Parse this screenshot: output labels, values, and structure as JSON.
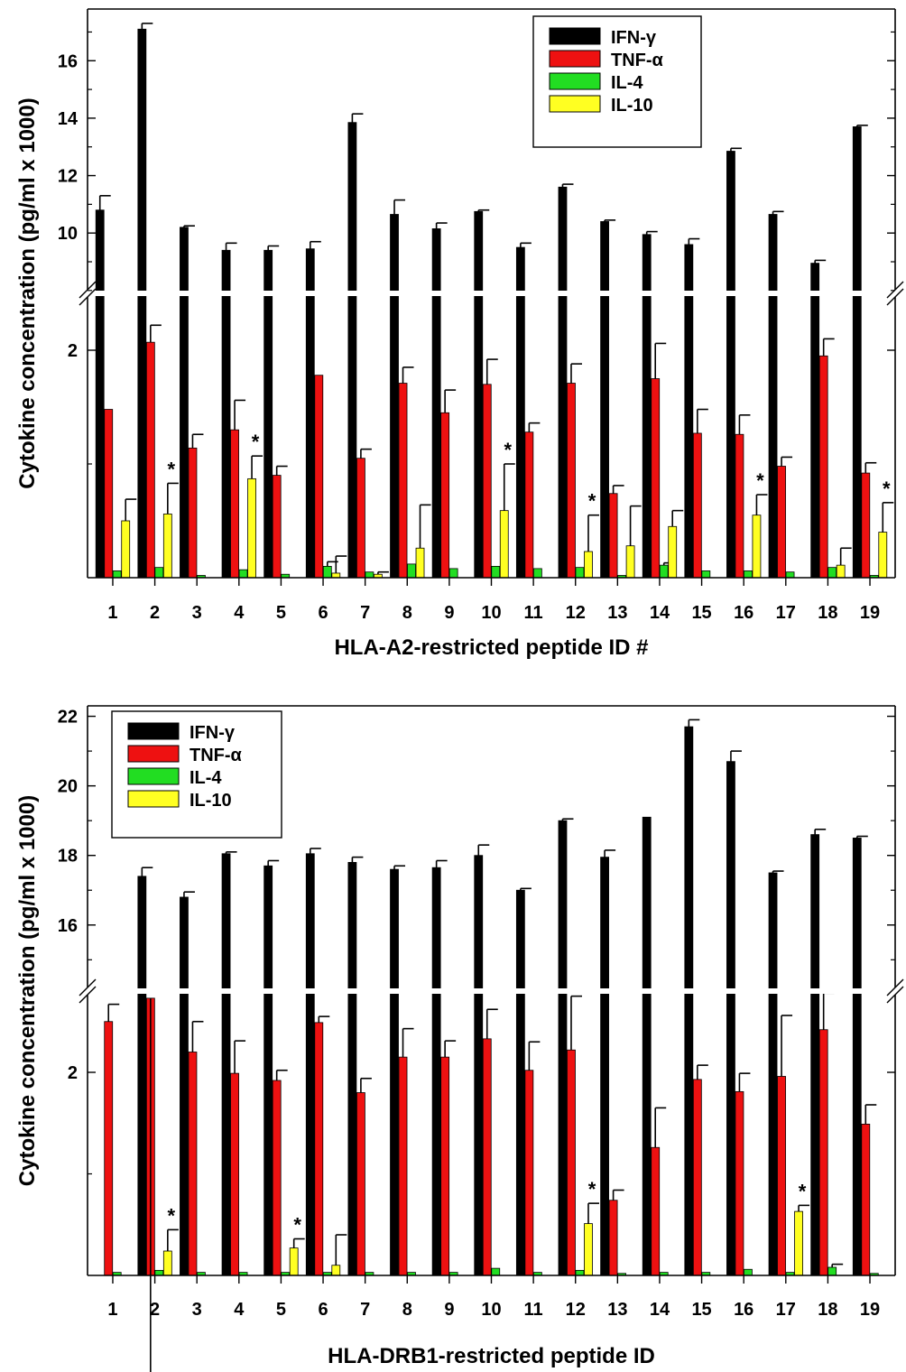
{
  "chart_data": [
    {
      "type": "bar",
      "xlabel": "HLA-A2-restricted peptide ID #",
      "ylabel": "Cytokine concentration (pg/ml x 1000)",
      "categories": [
        "1",
        "2",
        "3",
        "4",
        "5",
        "6",
        "7",
        "8",
        "9",
        "10",
        "11",
        "12",
        "13",
        "14",
        "15",
        "16",
        "17",
        "18",
        "19"
      ],
      "axis": {
        "upper": {
          "ylim": [
            7.9,
            17.8
          ],
          "ticks": [
            "10",
            "12",
            "14",
            "16"
          ]
        },
        "lower": {
          "ylim": [
            0,
            2.5
          ],
          "ticks": [
            "2"
          ]
        }
      },
      "series": [
        {
          "name": "IFN-γ",
          "color": "#000000",
          "values": [
            10.8,
            17.1,
            10.2,
            9.4,
            9.4,
            9.45,
            13.85,
            10.65,
            10.15,
            10.75,
            9.5,
            11.6,
            10.4,
            9.95,
            9.6,
            12.85,
            10.65,
            8.95,
            13.7
          ],
          "errors": [
            0.5,
            0.2,
            0.05,
            0.25,
            0.15,
            0.25,
            0.3,
            0.5,
            0.2,
            0.05,
            0.15,
            0.1,
            0.05,
            0.1,
            0.2,
            0.1,
            0.1,
            0.1,
            0.05
          ]
        },
        {
          "name": "TNF-α",
          "color": "#ee1111",
          "values": [
            1.48,
            2.07,
            1.14,
            1.3,
            0.9,
            1.78,
            1.05,
            1.71,
            1.45,
            1.7,
            1.28,
            1.71,
            0.74,
            1.75,
            1.27,
            1.26,
            0.98,
            1.95,
            0.92
          ],
          "errors": [
            0,
            0.15,
            0.12,
            0.26,
            0.08,
            0,
            0.08,
            0.14,
            0.2,
            0.22,
            0.08,
            0.17,
            0.07,
            0.31,
            0.21,
            0.17,
            0.08,
            0.15,
            0.09
          ]
        },
        {
          "name": "IL-4",
          "color": "#22dd22",
          "values": [
            0.06,
            0.09,
            0.02,
            0.07,
            0.03,
            0.1,
            0.05,
            0.12,
            0.08,
            0.1,
            0.08,
            0.09,
            0.02,
            0.11,
            0.06,
            0.06,
            0.05,
            0.09,
            0.02
          ],
          "errors": [
            0,
            0,
            0,
            0,
            0,
            0.04,
            0,
            0,
            0,
            0,
            0,
            0,
            0,
            0.02,
            0,
            0,
            0,
            0,
            0
          ]
        },
        {
          "name": "IL-10",
          "color": "#ffff22",
          "values": [
            0.5,
            0.56,
            0,
            0.87,
            0,
            0.04,
            0.03,
            0.26,
            0,
            0.59,
            0,
            0.23,
            0.28,
            0.45,
            0,
            0.55,
            0,
            0.11,
            0.4
          ],
          "errors": [
            0.19,
            0.27,
            0,
            0.2,
            0,
            0.15,
            0.02,
            0.38,
            0,
            0.41,
            0,
            0.32,
            0.35,
            0.14,
            0,
            0.18,
            0,
            0.15,
            0.26
          ]
        }
      ],
      "asterisk_categories": [
        "2",
        "4",
        "10",
        "12",
        "16",
        "19"
      ],
      "asterisk_label": "*",
      "legend_position": "top-right"
    },
    {
      "type": "bar",
      "xlabel": "HLA-DRB1-restricted peptide ID",
      "ylabel": "Cytokine concentration (pg/ml x 1000)",
      "categories": [
        "1",
        "2",
        "3",
        "4",
        "5",
        "6",
        "7",
        "8",
        "9",
        "10",
        "11",
        "12",
        "13",
        "14",
        "15",
        "16",
        "17",
        "18",
        "19"
      ],
      "axis": {
        "upper": {
          "ylim": [
            14.1,
            22.3
          ],
          "ticks": [
            "16",
            "18",
            "20",
            "22"
          ]
        },
        "lower": {
          "ylim": [
            0,
            2.8
          ],
          "ticks": [
            "2"
          ]
        }
      },
      "series": [
        {
          "name": "IFN-γ",
          "color": "#000000",
          "values": [
            0,
            17.4,
            16.8,
            18.05,
            17.7,
            18.05,
            17.8,
            17.6,
            17.65,
            18.0,
            17.0,
            19.0,
            17.95,
            19.1,
            21.7,
            20.7,
            17.5,
            18.6,
            18.5
          ],
          "errors": [
            0,
            0.25,
            0.15,
            0.05,
            0.15,
            0.15,
            0.15,
            0.1,
            0.2,
            0.3,
            0.05,
            0.05,
            0.2,
            0,
            0.2,
            0.3,
            0.05,
            0.15,
            0.05
          ]
        },
        {
          "name": "TNF-α",
          "color": "#ee1111",
          "values": [
            2.5,
            2.73,
            2.2,
            1.99,
            1.92,
            2.49,
            1.8,
            2.15,
            2.15,
            2.33,
            2.02,
            2.22,
            0.74,
            1.26,
            1.93,
            1.81,
            1.96,
            2.42,
            1.49
          ],
          "errors": [
            0.17,
            0.31,
            0.3,
            0.32,
            0.1,
            0.06,
            0.14,
            0.28,
            0.16,
            0.29,
            0.28,
            0.53,
            0.1,
            0.39,
            0.14,
            0.18,
            0.6,
            0.36,
            0.19
          ]
        },
        {
          "name": "IL-4",
          "color": "#22dd22",
          "values": [
            0.03,
            0.05,
            0.03,
            0.03,
            0.03,
            0.03,
            0.03,
            0.03,
            0.03,
            0.07,
            0.03,
            0.05,
            0.02,
            0.03,
            0.03,
            0.06,
            0.03,
            0.08,
            0.02
          ],
          "errors": [
            0,
            0,
            0,
            0,
            0,
            0,
            0,
            0,
            0,
            0,
            0,
            0,
            0,
            0,
            0,
            0,
            0,
            0.03,
            0
          ]
        },
        {
          "name": "IL-10",
          "color": "#ffff22",
          "values": [
            0,
            0.24,
            0,
            0,
            0.27,
            0.1,
            0,
            0,
            0,
            0,
            0,
            0.51,
            0,
            0,
            0,
            0,
            0.63,
            0,
            0
          ],
          "errors": [
            0,
            0.21,
            0,
            0,
            0.09,
            0.3,
            0,
            0,
            0,
            0,
            0,
            0.2,
            0,
            0,
            0,
            0,
            0.06,
            0,
            0
          ]
        }
      ],
      "asterisk_categories": [
        "2",
        "5",
        "12",
        "17"
      ],
      "asterisk_label": "*",
      "legend_position": "top-left"
    }
  ]
}
